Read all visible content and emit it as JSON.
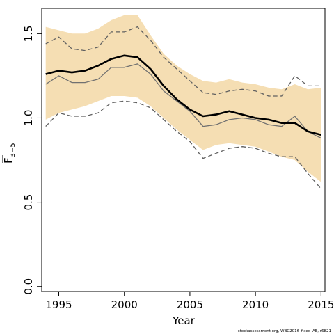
{
  "chart_data": {
    "type": "line",
    "title": "",
    "xlabel": "Year",
    "ylabel": "F",
    "ylabel_subscript": "3−5",
    "xlim": [
      1993.7,
      2015.3
    ],
    "ylim": [
      -0.03,
      1.65
    ],
    "x_ticks": [
      1995,
      2000,
      2005,
      2010,
      2015
    ],
    "x_tick_labels": [
      "1995",
      "2000",
      "2005",
      "2010",
      "2015"
    ],
    "y_ticks": [
      0.0,
      0.5,
      1.0,
      1.5
    ],
    "y_tick_labels": [
      "0.0",
      "0.5",
      "1.0",
      "1.5"
    ],
    "grid": false,
    "legend": "none",
    "x": [
      1994,
      1995,
      1996,
      1997,
      1998,
      1999,
      2000,
      2001,
      2002,
      2003,
      2004,
      2005,
      2006,
      2007,
      2008,
      2009,
      2010,
      2011,
      2012,
      2013,
      2014,
      2015
    ],
    "band": {
      "color": "#f5deb3",
      "lower": [
        0.99,
        1.03,
        1.05,
        1.07,
        1.1,
        1.13,
        1.13,
        1.12,
        1.07,
        1.0,
        0.93,
        0.87,
        0.81,
        0.84,
        0.85,
        0.84,
        0.83,
        0.8,
        0.77,
        0.75,
        0.68,
        0.62
      ],
      "upper": [
        1.54,
        1.52,
        1.5,
        1.5,
        1.53,
        1.58,
        1.61,
        1.61,
        1.49,
        1.38,
        1.31,
        1.26,
        1.22,
        1.21,
        1.23,
        1.21,
        1.2,
        1.18,
        1.17,
        1.2,
        1.17,
        1.18
      ]
    },
    "series": [
      {
        "style": "thick",
        "color": "#000000",
        "values": [
          1.26,
          1.28,
          1.27,
          1.28,
          1.31,
          1.35,
          1.37,
          1.36,
          1.29,
          1.19,
          1.11,
          1.05,
          1.01,
          1.02,
          1.04,
          1.02,
          1.0,
          0.99,
          0.97,
          0.97,
          0.92,
          0.9
        ]
      },
      {
        "style": "thin",
        "color": "#707070",
        "values": [
          1.2,
          1.25,
          1.21,
          1.21,
          1.23,
          1.3,
          1.3,
          1.32,
          1.26,
          1.16,
          1.1,
          1.04,
          0.95,
          0.96,
          0.99,
          1.0,
          0.99,
          0.96,
          0.95,
          1.01,
          0.92,
          0.88
        ]
      },
      {
        "style": "dashed",
        "color": "#606060",
        "values": [
          1.44,
          1.48,
          1.41,
          1.4,
          1.42,
          1.51,
          1.51,
          1.54,
          1.46,
          1.36,
          1.29,
          1.22,
          1.15,
          1.14,
          1.16,
          1.17,
          1.16,
          1.13,
          1.13,
          1.25,
          1.19,
          1.19
        ]
      },
      {
        "style": "dashed",
        "color": "#606060",
        "values": [
          0.95,
          1.03,
          1.01,
          1.01,
          1.03,
          1.09,
          1.1,
          1.09,
          1.06,
          0.99,
          0.92,
          0.86,
          0.76,
          0.79,
          0.82,
          0.83,
          0.82,
          0.79,
          0.77,
          0.77,
          0.67,
          0.58
        ]
      }
    ],
    "footnote": "stockassessment.org, WBC2016_fixed_AE, r6821"
  }
}
